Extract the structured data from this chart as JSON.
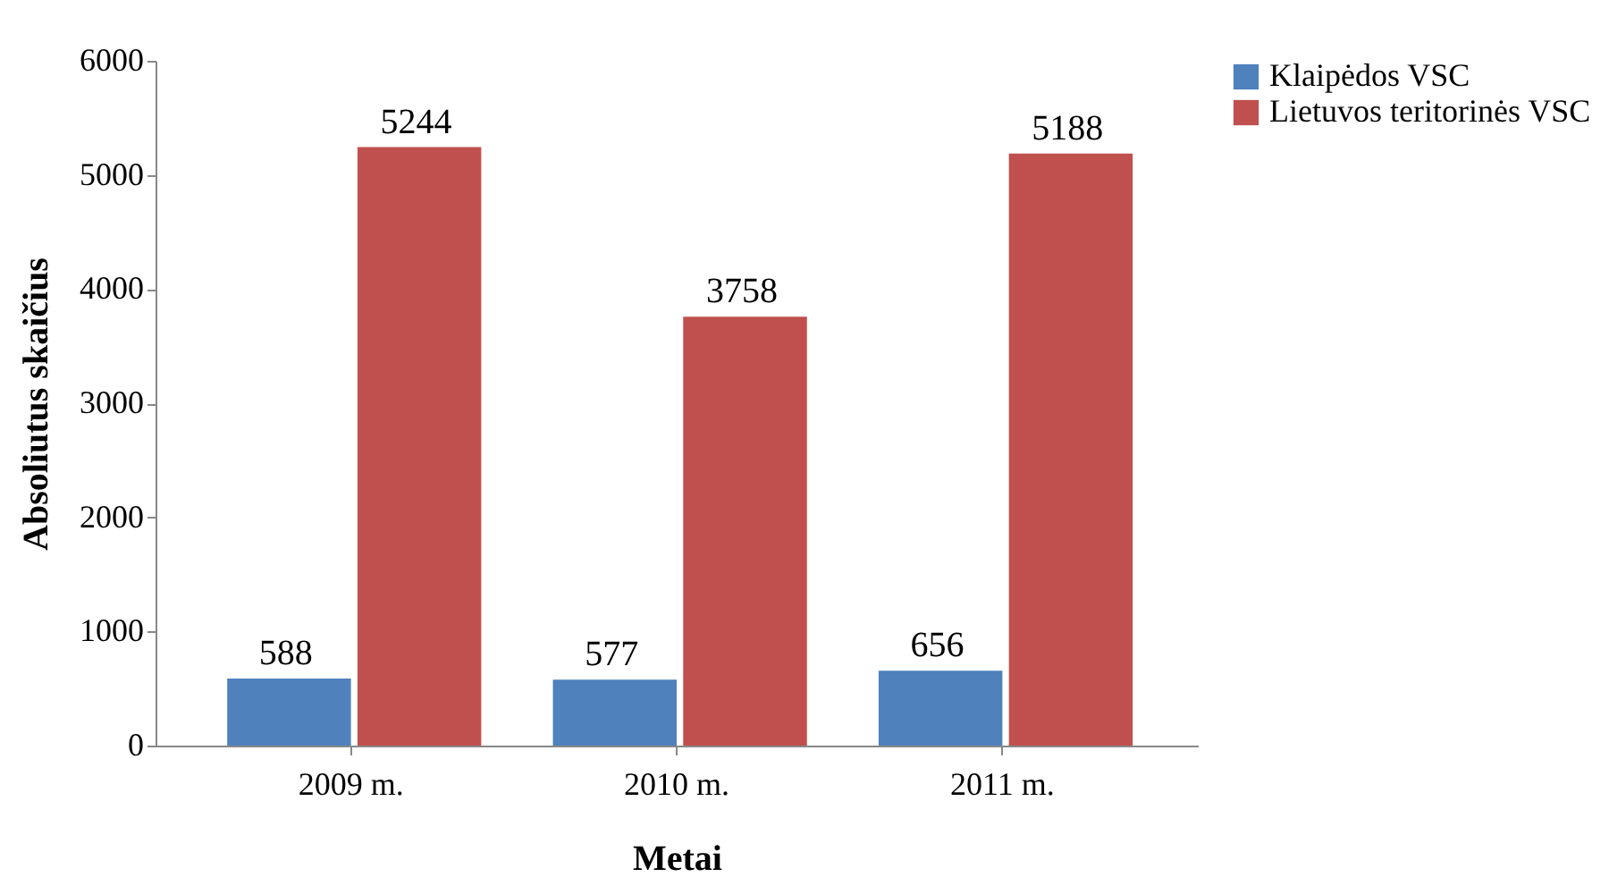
{
  "chart_data": {
    "type": "bar",
    "xlabel": "Metai",
    "ylabel": "Absoliutus skaičius",
    "categories": [
      "2009 m.",
      "2010 m.",
      "2011 m."
    ],
    "series": [
      {
        "name": "Klaipėdos VSC",
        "color": "#4f81bd",
        "values": [
          588,
          577,
          656
        ]
      },
      {
        "name": "Lietuvos teritorinės VSC",
        "color": "#c0504d",
        "values": [
          5244,
          3758,
          5188
        ]
      }
    ],
    "ylim": [
      0,
      6000
    ],
    "yticks": [
      0,
      1000,
      2000,
      3000,
      4000,
      5000,
      6000
    ],
    "data_labels": true,
    "grid": false,
    "legend": "right"
  }
}
